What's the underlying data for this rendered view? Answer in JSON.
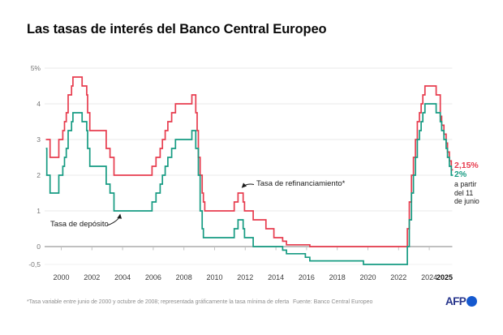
{
  "title": "Las tasas de interés del Banco Central Europeo",
  "chart_data": {
    "type": "line",
    "step": true,
    "title": "Las tasas de interés del Banco Central Europeo",
    "xlabel": "",
    "ylabel": "",
    "xlim": [
      1999,
      2025.55
    ],
    "ylim": [
      -0.5,
      5
    ],
    "grid": "horizontal",
    "y_ticks": [
      {
        "v": 5,
        "label": "5%"
      },
      {
        "v": 4,
        "label": "4"
      },
      {
        "v": 3,
        "label": "3"
      },
      {
        "v": 2,
        "label": "2"
      },
      {
        "v": 1,
        "label": "1"
      },
      {
        "v": 0,
        "label": "0"
      },
      {
        "v": -0.5,
        "label": "-0,5"
      }
    ],
    "x_ticks": [
      {
        "year": 2000,
        "label": "2000"
      },
      {
        "year": 2002,
        "label": "2002"
      },
      {
        "year": 2004,
        "label": "2004"
      },
      {
        "year": 2006,
        "label": "2006"
      },
      {
        "year": 2008,
        "label": "2008"
      },
      {
        "year": 2010,
        "label": "2010"
      },
      {
        "year": 2012,
        "label": "2012"
      },
      {
        "year": 2014,
        "label": "2014"
      },
      {
        "year": 2016,
        "label": "2016"
      },
      {
        "year": 2018,
        "label": "2018"
      },
      {
        "year": 2020,
        "label": "2020"
      },
      {
        "year": 2022,
        "label": "2022"
      },
      {
        "year": 2024,
        "label": "2024"
      },
      {
        "year": 2025,
        "label": "2025",
        "bold": true,
        "tick": false
      }
    ],
    "series": [
      {
        "id": "refinancing-rate",
        "name": "Tasa de refinanciamiento*",
        "color": "#e73c4e",
        "end_label": "2,15%",
        "end_value": 2.15,
        "points": [
          [
            1999.0,
            3.0
          ],
          [
            1999.27,
            2.5
          ],
          [
            1999.84,
            3.0
          ],
          [
            2000.1,
            3.25
          ],
          [
            2000.21,
            3.5
          ],
          [
            2000.33,
            3.75
          ],
          [
            2000.45,
            4.25
          ],
          [
            2000.67,
            4.5
          ],
          [
            2000.76,
            4.75
          ],
          [
            2001.36,
            4.5
          ],
          [
            2001.66,
            4.25
          ],
          [
            2001.72,
            3.75
          ],
          [
            2001.86,
            3.25
          ],
          [
            2002.93,
            2.75
          ],
          [
            2003.18,
            2.5
          ],
          [
            2003.44,
            2.0
          ],
          [
            2005.92,
            2.25
          ],
          [
            2006.18,
            2.5
          ],
          [
            2006.45,
            2.75
          ],
          [
            2006.6,
            3.0
          ],
          [
            2006.78,
            3.25
          ],
          [
            2006.95,
            3.5
          ],
          [
            2007.2,
            3.75
          ],
          [
            2007.45,
            4.0
          ],
          [
            2008.52,
            4.25
          ],
          [
            2008.77,
            3.75
          ],
          [
            2008.86,
            3.25
          ],
          [
            2008.94,
            2.5
          ],
          [
            2009.06,
            2.0
          ],
          [
            2009.19,
            1.5
          ],
          [
            2009.27,
            1.25
          ],
          [
            2009.36,
            1.0
          ],
          [
            2011.28,
            1.25
          ],
          [
            2011.53,
            1.5
          ],
          [
            2011.86,
            1.25
          ],
          [
            2011.95,
            1.0
          ],
          [
            2012.52,
            0.75
          ],
          [
            2013.35,
            0.5
          ],
          [
            2013.87,
            0.25
          ],
          [
            2014.44,
            0.15
          ],
          [
            2014.69,
            0.05
          ],
          [
            2016.21,
            0.0
          ],
          [
            2022.57,
            0.5
          ],
          [
            2022.7,
            1.25
          ],
          [
            2022.84,
            2.0
          ],
          [
            2022.97,
            2.5
          ],
          [
            2023.1,
            3.0
          ],
          [
            2023.22,
            3.5
          ],
          [
            2023.36,
            3.75
          ],
          [
            2023.47,
            4.0
          ],
          [
            2023.58,
            4.25
          ],
          [
            2023.72,
            4.5
          ],
          [
            2024.45,
            4.25
          ],
          [
            2024.72,
            3.65
          ],
          [
            2024.81,
            3.4
          ],
          [
            2024.96,
            3.15
          ],
          [
            2025.1,
            2.9
          ],
          [
            2025.19,
            2.65
          ],
          [
            2025.31,
            2.4
          ],
          [
            2025.44,
            2.15
          ]
        ]
      },
      {
        "id": "deposit-rate",
        "name": "Tasa de depósito",
        "color": "#169b82",
        "end_label": "2%",
        "end_value": 2.0,
        "points": [
          [
            1999.0,
            2.75
          ],
          [
            1999.06,
            2.0
          ],
          [
            1999.27,
            1.5
          ],
          [
            1999.84,
            2.0
          ],
          [
            2000.1,
            2.25
          ],
          [
            2000.21,
            2.5
          ],
          [
            2000.33,
            2.75
          ],
          [
            2000.45,
            3.25
          ],
          [
            2000.67,
            3.5
          ],
          [
            2000.76,
            3.75
          ],
          [
            2001.36,
            3.5
          ],
          [
            2001.66,
            3.25
          ],
          [
            2001.72,
            2.75
          ],
          [
            2001.86,
            2.25
          ],
          [
            2002.93,
            1.75
          ],
          [
            2003.18,
            1.5
          ],
          [
            2003.44,
            1.0
          ],
          [
            2005.92,
            1.25
          ],
          [
            2006.18,
            1.5
          ],
          [
            2006.45,
            1.75
          ],
          [
            2006.6,
            2.0
          ],
          [
            2006.78,
            2.25
          ],
          [
            2006.95,
            2.5
          ],
          [
            2007.2,
            2.75
          ],
          [
            2007.45,
            3.0
          ],
          [
            2008.52,
            3.25
          ],
          [
            2008.77,
            2.75
          ],
          [
            2008.94,
            2.0
          ],
          [
            2009.06,
            1.0
          ],
          [
            2009.19,
            0.5
          ],
          [
            2009.27,
            0.25
          ],
          [
            2011.28,
            0.5
          ],
          [
            2011.53,
            0.75
          ],
          [
            2011.86,
            0.5
          ],
          [
            2011.95,
            0.25
          ],
          [
            2012.52,
            0.0
          ],
          [
            2014.44,
            -0.1
          ],
          [
            2014.69,
            -0.2
          ],
          [
            2015.92,
            -0.3
          ],
          [
            2016.21,
            -0.4
          ],
          [
            2019.71,
            -0.5
          ],
          [
            2022.57,
            0.0
          ],
          [
            2022.7,
            0.75
          ],
          [
            2022.84,
            1.5
          ],
          [
            2022.97,
            2.0
          ],
          [
            2023.1,
            2.5
          ],
          [
            2023.22,
            3.0
          ],
          [
            2023.36,
            3.25
          ],
          [
            2023.47,
            3.5
          ],
          [
            2023.58,
            3.75
          ],
          [
            2023.72,
            4.0
          ],
          [
            2024.45,
            3.75
          ],
          [
            2024.72,
            3.5
          ],
          [
            2024.81,
            3.25
          ],
          [
            2024.96,
            3.0
          ],
          [
            2025.1,
            2.75
          ],
          [
            2025.19,
            2.5
          ],
          [
            2025.31,
            2.25
          ],
          [
            2025.44,
            2.0
          ]
        ]
      }
    ],
    "end_note": [
      "a partir",
      "del 11",
      "de junio"
    ],
    "annotation_labels": [
      "Tasa de depósito",
      "Tasa de refinanciamiento*"
    ]
  },
  "footer": {
    "footnote": "*Tasa variable entre junio de 2000 y octubre de 2008; representada gráficamente la tasa mínima de oferta",
    "source": "Fuente: Banco Central Europeo",
    "logo": "AFP"
  },
  "colors": {
    "refinancing_line": "#e73c4e",
    "deposit_line": "#169b82",
    "zero_axis": "#ababab",
    "gridline": "#eaeaea",
    "afp_navy": "#27358c",
    "afp_blue": "#1559cf"
  }
}
